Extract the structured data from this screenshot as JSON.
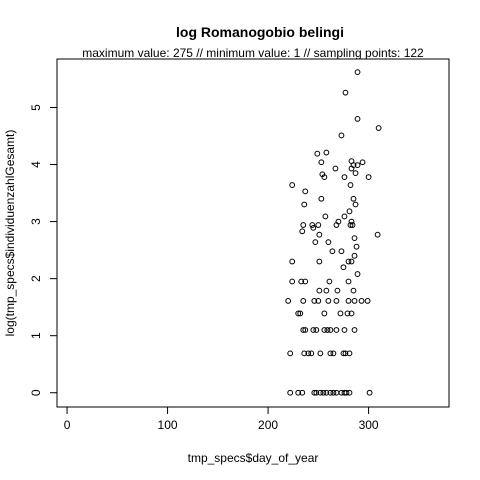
{
  "chart_data": {
    "type": "scatter",
    "title": "log Romanogobio belingi",
    "subtitle": "maximum value: 275  //  minimum value: 1  // sampling points: 122",
    "xlabel": "tmp_specs$day_of_year",
    "ylabel": "log(tmp_specs$individuenzahlGesamt)",
    "xlim": [
      -10,
      380
    ],
    "ylim": [
      -0.25,
      5.85
    ],
    "xticks": [
      0,
      100,
      200,
      300
    ],
    "yticks": [
      0,
      1,
      2,
      3,
      4,
      5
    ],
    "grid": false,
    "legend": "none",
    "color": "#000000",
    "points": [
      {
        "x": 222,
        "y": 0.0
      },
      {
        "x": 230,
        "y": 0.0
      },
      {
        "x": 234,
        "y": 0.0
      },
      {
        "x": 246,
        "y": 0.0
      },
      {
        "x": 248,
        "y": 0.0
      },
      {
        "x": 252,
        "y": 0.0
      },
      {
        "x": 255,
        "y": 0.0
      },
      {
        "x": 258,
        "y": 0.0
      },
      {
        "x": 262,
        "y": 0.0
      },
      {
        "x": 265,
        "y": 0.0
      },
      {
        "x": 268,
        "y": 0.0
      },
      {
        "x": 273,
        "y": 0.0
      },
      {
        "x": 276,
        "y": 0.0
      },
      {
        "x": 278,
        "y": 0.0
      },
      {
        "x": 281,
        "y": 0.0
      },
      {
        "x": 301,
        "y": 0.0
      },
      {
        "x": 222,
        "y": 0.69
      },
      {
        "x": 236,
        "y": 0.69
      },
      {
        "x": 240,
        "y": 0.69
      },
      {
        "x": 243,
        "y": 0.69
      },
      {
        "x": 252,
        "y": 0.69
      },
      {
        "x": 262,
        "y": 0.69
      },
      {
        "x": 265,
        "y": 0.69
      },
      {
        "x": 275,
        "y": 0.69
      },
      {
        "x": 277,
        "y": 0.69
      },
      {
        "x": 281,
        "y": 0.69
      },
      {
        "x": 235,
        "y": 1.1
      },
      {
        "x": 237,
        "y": 1.1
      },
      {
        "x": 245,
        "y": 1.1
      },
      {
        "x": 248,
        "y": 1.1
      },
      {
        "x": 256,
        "y": 1.1
      },
      {
        "x": 259,
        "y": 1.1
      },
      {
        "x": 262,
        "y": 1.1
      },
      {
        "x": 268,
        "y": 1.1
      },
      {
        "x": 276,
        "y": 1.1
      },
      {
        "x": 286,
        "y": 1.1
      },
      {
        "x": 230,
        "y": 1.39
      },
      {
        "x": 232,
        "y": 1.39
      },
      {
        "x": 256,
        "y": 1.39
      },
      {
        "x": 272,
        "y": 1.39
      },
      {
        "x": 279,
        "y": 1.39
      },
      {
        "x": 283,
        "y": 1.39
      },
      {
        "x": 220,
        "y": 1.61
      },
      {
        "x": 235,
        "y": 1.61
      },
      {
        "x": 246,
        "y": 1.61
      },
      {
        "x": 250,
        "y": 1.61
      },
      {
        "x": 260,
        "y": 1.61
      },
      {
        "x": 268,
        "y": 1.61
      },
      {
        "x": 280,
        "y": 1.61
      },
      {
        "x": 286,
        "y": 1.61
      },
      {
        "x": 293,
        "y": 1.61
      },
      {
        "x": 299,
        "y": 1.61
      },
      {
        "x": 251,
        "y": 1.79
      },
      {
        "x": 258,
        "y": 1.79
      },
      {
        "x": 269,
        "y": 1.79
      },
      {
        "x": 285,
        "y": 1.79
      },
      {
        "x": 224,
        "y": 1.95
      },
      {
        "x": 233,
        "y": 1.95
      },
      {
        "x": 237,
        "y": 1.95
      },
      {
        "x": 261,
        "y": 1.95
      },
      {
        "x": 280,
        "y": 1.95
      },
      {
        "x": 289,
        "y": 2.08
      },
      {
        "x": 275,
        "y": 2.2
      },
      {
        "x": 224,
        "y": 2.3
      },
      {
        "x": 251,
        "y": 2.3
      },
      {
        "x": 280,
        "y": 2.3
      },
      {
        "x": 283,
        "y": 2.3
      },
      {
        "x": 286,
        "y": 2.4
      },
      {
        "x": 264,
        "y": 2.48
      },
      {
        "x": 273,
        "y": 2.48
      },
      {
        "x": 288,
        "y": 2.56
      },
      {
        "x": 247,
        "y": 2.64
      },
      {
        "x": 260,
        "y": 2.64
      },
      {
        "x": 286,
        "y": 2.71
      },
      {
        "x": 251,
        "y": 2.77
      },
      {
        "x": 309,
        "y": 2.77
      },
      {
        "x": 234,
        "y": 2.83
      },
      {
        "x": 245,
        "y": 2.89
      },
      {
        "x": 235,
        "y": 2.94
      },
      {
        "x": 244,
        "y": 2.94
      },
      {
        "x": 250,
        "y": 2.94
      },
      {
        "x": 268,
        "y": 2.94
      },
      {
        "x": 282,
        "y": 2.94
      },
      {
        "x": 284,
        "y": 2.94
      },
      {
        "x": 270,
        "y": 3.0
      },
      {
        "x": 283,
        "y": 3.0
      },
      {
        "x": 257,
        "y": 3.09
      },
      {
        "x": 276,
        "y": 3.09
      },
      {
        "x": 281,
        "y": 3.18
      },
      {
        "x": 236,
        "y": 3.3
      },
      {
        "x": 287,
        "y": 3.3
      },
      {
        "x": 253,
        "y": 3.4
      },
      {
        "x": 285,
        "y": 3.4
      },
      {
        "x": 237,
        "y": 3.53
      },
      {
        "x": 224,
        "y": 3.64
      },
      {
        "x": 282,
        "y": 3.64
      },
      {
        "x": 256,
        "y": 3.78
      },
      {
        "x": 276,
        "y": 3.78
      },
      {
        "x": 300,
        "y": 3.78
      },
      {
        "x": 254,
        "y": 3.83
      },
      {
        "x": 287,
        "y": 3.85
      },
      {
        "x": 267,
        "y": 3.93
      },
      {
        "x": 283,
        "y": 3.93
      },
      {
        "x": 285,
        "y": 3.99
      },
      {
        "x": 289,
        "y": 3.99
      },
      {
        "x": 253,
        "y": 4.04
      },
      {
        "x": 283,
        "y": 4.06
      },
      {
        "x": 294,
        "y": 4.04
      },
      {
        "x": 249,
        "y": 4.19
      },
      {
        "x": 258,
        "y": 4.21
      },
      {
        "x": 273,
        "y": 4.51
      },
      {
        "x": 310,
        "y": 4.64
      },
      {
        "x": 289,
        "y": 4.8
      },
      {
        "x": 277,
        "y": 5.26
      },
      {
        "x": 289,
        "y": 5.62
      }
    ]
  }
}
